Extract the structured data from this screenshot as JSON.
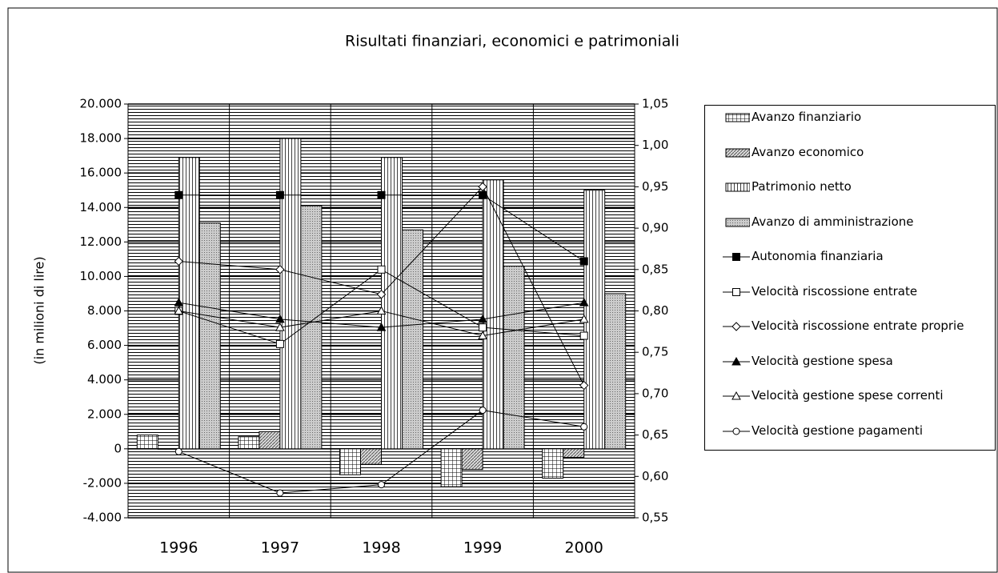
{
  "chart_data": {
    "type": "bar-line",
    "title": "Risultati finanziari, economici e patrimoniali",
    "y_label": "(in milioni di lire)",
    "categories": [
      "1996",
      "1997",
      "1998",
      "1999",
      "2000"
    ],
    "ylim": [
      -4000,
      20000
    ],
    "yticks": [
      {
        "value": -4000,
        "label": "-4.000"
      },
      {
        "value": -2000,
        "label": "-2.000"
      },
      0,
      {
        "value": 2000,
        "label": "2.000"
      },
      {
        "value": 4000,
        "label": "4.000"
      },
      {
        "value": 6000,
        "label": "6.000"
      },
      {
        "value": 8000,
        "label": "8.000"
      },
      {
        "value": 10000,
        "label": "10.000"
      },
      {
        "value": 12000,
        "label": "12.000"
      },
      {
        "value": 14000,
        "label": "14.000"
      },
      {
        "value": 16000,
        "label": "16.000"
      },
      {
        "value": 18000,
        "label": "18.000"
      },
      {
        "value": 20000,
        "label": "20.000"
      }
    ],
    "y2lim": [
      0.55,
      1.05
    ],
    "y2ticks": [
      {
        "value": 0.55,
        "label": "0,55"
      },
      {
        "value": 0.6,
        "label": "0,60"
      },
      {
        "value": 0.65,
        "label": "0,65"
      },
      {
        "value": 0.7,
        "label": "0,70"
      },
      {
        "value": 0.75,
        "label": "0,75"
      },
      {
        "value": 0.8,
        "label": "0,80"
      },
      {
        "value": 0.85,
        "label": "0,85"
      },
      {
        "value": 0.9,
        "label": "0,90"
      },
      {
        "value": 0.95,
        "label": "0,95"
      },
      {
        "value": 1.0,
        "label": "1,00"
      },
      {
        "value": 1.05,
        "label": "1,05"
      }
    ],
    "grid": true,
    "legend": "right",
    "series": [
      {
        "name": "Avanzo finanziario",
        "kind": "bar",
        "pattern": "grid",
        "color": "#000000",
        "values": [
          800,
          700,
          -1500,
          -2200,
          -1700
        ]
      },
      {
        "name": "Avanzo economico",
        "kind": "bar",
        "pattern": "diagonal",
        "color": "#000000",
        "values": [
          0,
          1000,
          -900,
          -1200,
          -500
        ]
      },
      {
        "name": "Patrimonio netto",
        "kind": "bar",
        "pattern": "vertical",
        "color": "#000000",
        "values": [
          16900,
          18000,
          16900,
          15600,
          15000
        ]
      },
      {
        "name": "Avanzo di amministrazione",
        "kind": "bar",
        "pattern": "dots",
        "color": "#000000",
        "values": [
          13100,
          14100,
          12700,
          10600,
          9000
        ]
      },
      {
        "name": "Autonomia finanziaria",
        "kind": "line",
        "axis": "y2",
        "marker": "square",
        "filled": true,
        "color": "#000000",
        "values": [
          0.94,
          0.94,
          0.94,
          0.94,
          0.86
        ]
      },
      {
        "name": "Velocità riscossione entrate",
        "kind": "line",
        "axis": "y2",
        "marker": "square",
        "filled": false,
        "color": "#000000",
        "values": [
          0.8,
          0.76,
          0.85,
          0.78,
          0.77
        ]
      },
      {
        "name": "Velocità riscossione entrate proprie",
        "kind": "line",
        "axis": "y2",
        "marker": "diamond",
        "filled": false,
        "color": "#000000",
        "values": [
          0.86,
          0.85,
          0.82,
          0.95,
          0.71
        ]
      },
      {
        "name": "Velocità gestione spesa",
        "kind": "line",
        "axis": "y2",
        "marker": "triangle",
        "filled": true,
        "color": "#000000",
        "values": [
          0.81,
          0.79,
          0.78,
          0.79,
          0.81
        ]
      },
      {
        "name": "Velocità gestione spese correnti",
        "kind": "line",
        "axis": "y2",
        "marker": "triangle",
        "filled": false,
        "color": "#000000",
        "values": [
          0.8,
          0.78,
          0.8,
          0.77,
          0.79
        ]
      },
      {
        "name": "Velocità gestione pagamenti",
        "kind": "line",
        "axis": "y2",
        "marker": "circle",
        "filled": false,
        "color": "#000000",
        "values": [
          0.63,
          0.58,
          0.59,
          0.68,
          0.66
        ]
      }
    ]
  }
}
